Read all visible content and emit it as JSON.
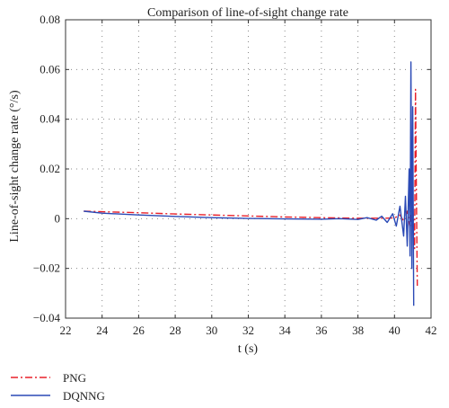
{
  "chart_data": {
    "type": "line",
    "title": "Comparison of line-of-sight change rate",
    "xlabel": "t (s)",
    "ylabel": "Line-of-sight change rate (°/s)",
    "xlim": [
      22,
      42
    ],
    "ylim": [
      -0.04,
      0.08
    ],
    "xticks": [
      22,
      24,
      26,
      28,
      30,
      32,
      34,
      36,
      38,
      40,
      42
    ],
    "yticks": [
      -0.04,
      -0.02,
      0,
      0.02,
      0.04,
      0.06,
      0.08
    ],
    "ytick_labels": [
      "−0.04",
      "−0.02",
      "0",
      "0.02",
      "0.04",
      "0.06",
      "0.08"
    ],
    "grid": true,
    "legend_position": "bottom-left",
    "series": [
      {
        "name": "PNG",
        "color": "#e8202a",
        "style": "dash-dot",
        "x": [
          23,
          24,
          26,
          28,
          30,
          32,
          34,
          36,
          38,
          39,
          39.5,
          40,
          40.3,
          40.5,
          40.7,
          40.85,
          41.0,
          41.1,
          41.15,
          41.2,
          41.25
        ],
        "y": [
          0.003,
          0.0028,
          0.0024,
          0.0019,
          0.0015,
          0.0011,
          0.0007,
          0.0004,
          0.0002,
          0.0002,
          0.0002,
          0.0003,
          0.0015,
          -0.001,
          0.003,
          -0.004,
          0.007,
          -0.012,
          0.052,
          0.01,
          -0.027
        ]
      },
      {
        "name": "DQNNG",
        "color": "#2a49b5",
        "style": "solid",
        "x": [
          23,
          24,
          26,
          28,
          30,
          32,
          34,
          36,
          37,
          38,
          38.5,
          39,
          39.3,
          39.6,
          39.9,
          40.1,
          40.3,
          40.5,
          40.6,
          40.7,
          40.8,
          40.85,
          40.9,
          40.95,
          41.0,
          41.05
        ],
        "y": [
          0.003,
          0.0022,
          0.0015,
          0.0009,
          0.0004,
          0.0001,
          -0.0001,
          -0.0002,
          0.0,
          -0.0003,
          0.0004,
          -0.0006,
          0.001,
          -0.0015,
          0.002,
          -0.003,
          0.005,
          -0.007,
          0.009,
          -0.011,
          0.02,
          -0.015,
          0.063,
          -0.02,
          0.045,
          -0.035
        ]
      }
    ]
  }
}
